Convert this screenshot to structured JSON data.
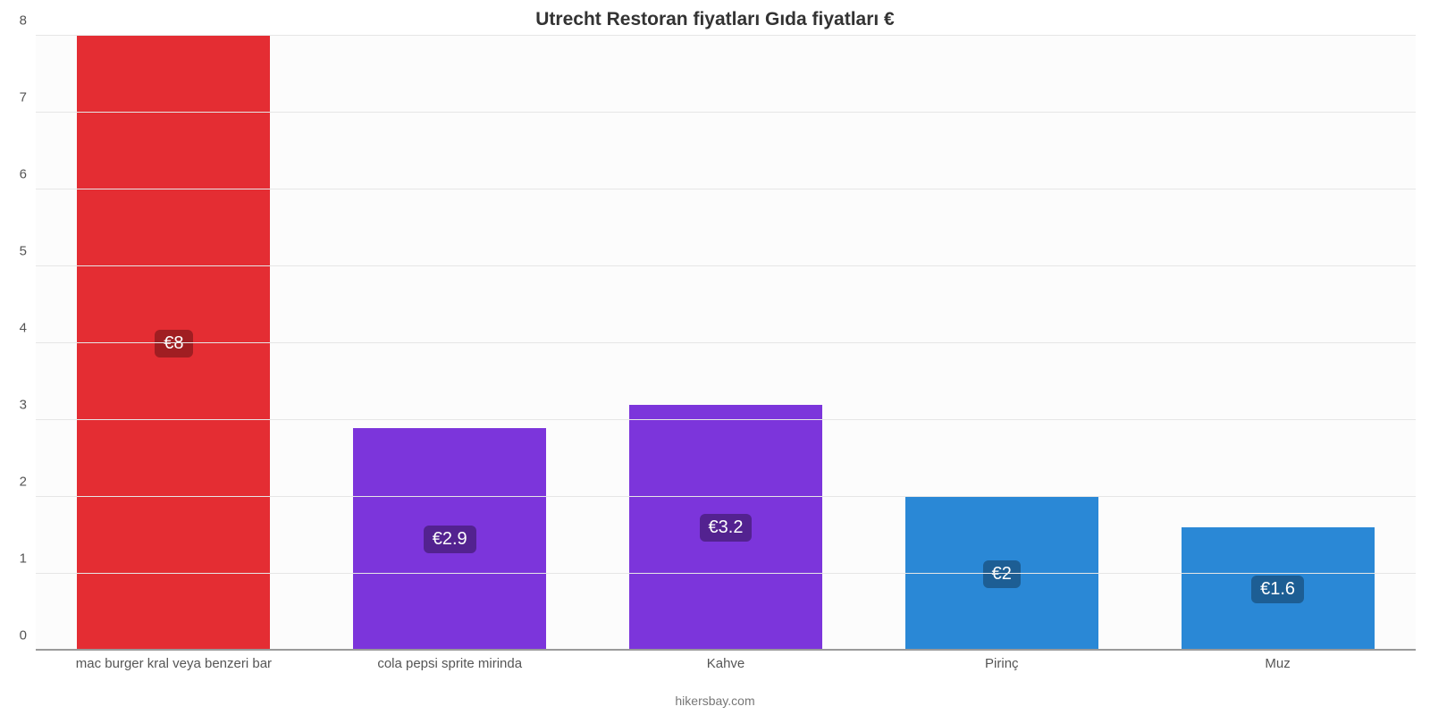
{
  "chart": {
    "type": "bar",
    "title": "Utrecht Restoran fiyatları Gıda fiyatları €",
    "title_fontsize": 21,
    "title_color": "#333333",
    "source_line": "hikersbay.com",
    "source_fontsize": 14,
    "source_color": "#777777",
    "background_color": "#ffffff",
    "plot_background_color": "#fcfcfc",
    "grid_color": "#e6e6e6",
    "axis_line_color": "#9a9a9a",
    "ylim": [
      0,
      8
    ],
    "ytick_step": 1,
    "ytick_labels": [
      "0",
      "1",
      "2",
      "3",
      "4",
      "5",
      "6",
      "7",
      "8"
    ],
    "ytick_fontsize": 15,
    "ytick_color": "#555555",
    "bar_width_pct": 70,
    "categories": [
      "mac burger kral veya benzeri bar",
      "cola pepsi sprite mirinda",
      "Kahve",
      "Pirinç",
      "Muz"
    ],
    "values": [
      8,
      2.9,
      3.2,
      2,
      1.6
    ],
    "value_labels": [
      "€8",
      "€2.9",
      "€3.2",
      "€2",
      "€1.6"
    ],
    "bar_colors": [
      "#e42d33",
      "#7c35db",
      "#7c35db",
      "#2a88d6",
      "#2a88d6"
    ],
    "badge_bg_colors": [
      "#a01e22",
      "#532290",
      "#532290",
      "#1d5e94",
      "#1d5e94"
    ],
    "badge_text_color": "#ffffff",
    "badge_fontsize": 20,
    "xlabel_fontsize": 15,
    "xlabel_color": "#555555"
  }
}
